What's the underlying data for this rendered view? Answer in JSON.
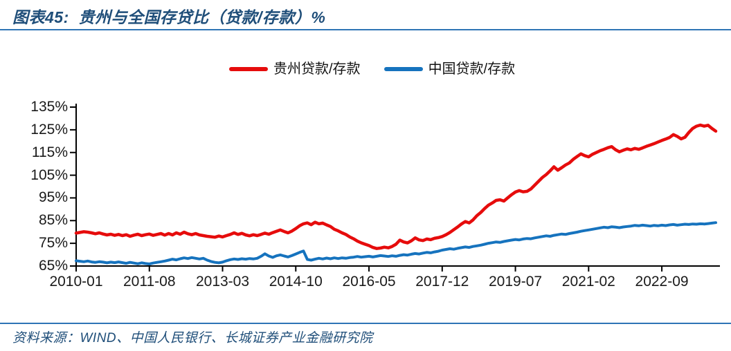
{
  "title": "图表45:  贵州与全国存贷比（贷款/存款）%",
  "source": "资料来源：WIND、中国人民银行、长城证券产业金融研究院",
  "colors": {
    "title_navy": "#1f4e79",
    "rule_blue": "#2e74b5",
    "guizhou_red": "#e60c0c",
    "china_blue": "#1673be",
    "axis_black": "#000000",
    "tick_text": "#1a1a1a"
  },
  "chart_data": {
    "type": "line",
    "title": "贵州与全国存贷比（贷款/存款）%",
    "xlabel": "",
    "ylabel": "",
    "x_start": "2010-01",
    "x_end": "2023-11",
    "x_frequency": "monthly",
    "x_tick_labels": [
      "2010-01",
      "2011-08",
      "2013-03",
      "2014-10",
      "2016-05",
      "2017-12",
      "2019-07",
      "2021-02",
      "2022-09"
    ],
    "x_tick_month_indices": [
      0,
      19,
      38,
      57,
      76,
      95,
      114,
      133,
      152
    ],
    "y_tick_labels": [
      "135%",
      "125%",
      "115%",
      "105%",
      "95%",
      "85%",
      "75%",
      "65%"
    ],
    "ylim": [
      65,
      135
    ],
    "grid": false,
    "legend_position": "top-center",
    "series": [
      {
        "name": "贵州贷款/存款",
        "color": "#e60c0c",
        "values": [
          79.5,
          79.8,
          80.1,
          79.9,
          79.6,
          79.2,
          79.6,
          79.1,
          78.7,
          79.0,
          78.5,
          78.9,
          78.4,
          78.8,
          78.1,
          78.6,
          79.0,
          78.4,
          78.8,
          79.1,
          78.5,
          78.9,
          79.3,
          78.6,
          79.3,
          78.7,
          79.6,
          79.0,
          79.9,
          79.2,
          78.8,
          79.3,
          78.7,
          78.4,
          78.1,
          77.9,
          77.7,
          78.2,
          77.8,
          78.4,
          78.9,
          79.6,
          78.9,
          79.4,
          78.7,
          78.3,
          78.8,
          78.4,
          78.9,
          79.5,
          79.0,
          79.7,
          80.3,
          80.9,
          80.2,
          79.6,
          80.4,
          81.5,
          82.7,
          83.6,
          84.0,
          83.2,
          84.3,
          83.6,
          83.9,
          83.1,
          82.4,
          81.2,
          80.5,
          79.6,
          78.9,
          77.8,
          77.0,
          76.0,
          75.2,
          74.6,
          74.0,
          73.2,
          72.7,
          72.9,
          73.3,
          73.0,
          73.6,
          74.6,
          76.4,
          75.6,
          75.2,
          76.1,
          77.4,
          76.5,
          76.2,
          76.9,
          76.6,
          77.2,
          77.5,
          78.0,
          78.8,
          79.8,
          81.0,
          82.2,
          83.5,
          84.6,
          84.0,
          85.3,
          87.2,
          88.6,
          90.3,
          91.8,
          92.8,
          93.9,
          94.2,
          93.6,
          95.0,
          96.4,
          97.6,
          98.2,
          97.7,
          97.9,
          98.9,
          100.6,
          102.3,
          104.0,
          105.3,
          106.9,
          108.7,
          107.2,
          108.3,
          109.5,
          110.4,
          112.0,
          113.2,
          114.4,
          113.6,
          113.1,
          114.2,
          115.0,
          115.8,
          116.4,
          117.1,
          117.6,
          116.2,
          115.3,
          116.0,
          116.6,
          116.2,
          116.8,
          116.4,
          117.0,
          117.7,
          118.3,
          118.9,
          119.6,
          120.3,
          120.9,
          121.6,
          122.9,
          122.1,
          121.0,
          121.7,
          123.8,
          125.6,
          126.6,
          127.1,
          126.6,
          127.0,
          125.6,
          124.4
        ]
      },
      {
        "name": "中国贷款/存款",
        "color": "#1673be",
        "values": [
          67.3,
          67.1,
          66.9,
          67.2,
          66.8,
          66.6,
          66.9,
          66.7,
          66.4,
          66.7,
          66.5,
          66.8,
          66.5,
          66.2,
          66.6,
          66.3,
          66.0,
          66.4,
          66.1,
          65.9,
          66.3,
          66.6,
          66.9,
          67.2,
          67.6,
          68.0,
          67.7,
          68.2,
          68.6,
          68.3,
          68.7,
          68.4,
          68.1,
          68.4,
          67.6,
          67.0,
          66.6,
          66.4,
          66.7,
          67.3,
          67.8,
          68.1,
          67.9,
          68.2,
          68.0,
          68.3,
          68.1,
          68.4,
          69.3,
          70.4,
          69.4,
          68.8,
          69.5,
          69.9,
          69.4,
          69.0,
          69.6,
          70.3,
          71.0,
          71.6,
          67.9,
          67.6,
          68.0,
          68.4,
          68.1,
          68.5,
          68.2,
          68.6,
          68.3,
          68.6,
          68.4,
          68.7,
          68.9,
          69.2,
          68.9,
          69.1,
          69.3,
          69.0,
          69.3,
          69.6,
          69.4,
          69.2,
          69.5,
          69.3,
          69.7,
          70.0,
          69.8,
          70.2,
          70.5,
          70.3,
          70.7,
          71.0,
          70.8,
          71.2,
          71.5,
          72.0,
          72.3,
          72.6,
          72.4,
          72.8,
          73.1,
          73.4,
          73.2,
          73.6,
          73.9,
          74.2,
          74.6,
          75.0,
          75.3,
          75.6,
          75.4,
          75.8,
          76.1,
          76.4,
          76.7,
          76.5,
          76.9,
          77.1,
          77.0,
          77.4,
          77.7,
          78.0,
          78.3,
          78.1,
          78.5,
          78.8,
          79.1,
          78.9,
          79.3,
          79.6,
          79.9,
          80.3,
          80.6,
          80.9,
          81.2,
          81.5,
          81.8,
          82.1,
          81.9,
          82.3,
          82.1,
          81.9,
          82.2,
          82.4,
          82.6,
          82.9,
          82.7,
          83.0,
          82.8,
          82.6,
          82.9,
          82.7,
          83.0,
          82.8,
          83.1,
          83.3,
          83.0,
          83.2,
          83.4,
          83.3,
          83.5,
          83.4,
          83.6,
          83.5,
          83.7,
          83.9,
          84.1
        ]
      }
    ]
  }
}
